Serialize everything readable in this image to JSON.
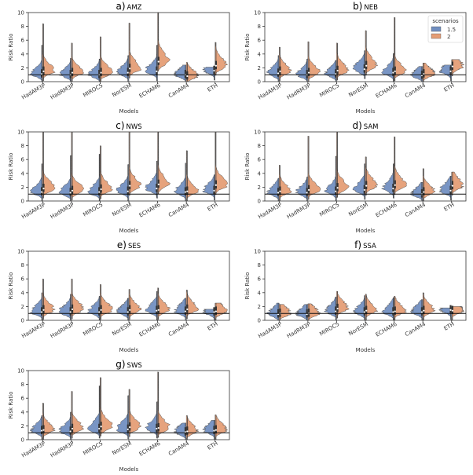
{
  "colors": {
    "s15": "#4c72b0",
    "s2": "#dd8452"
  },
  "chart_data": [
    {
      "type": "violin",
      "title_letter": "a)",
      "title_region": "AMZ",
      "xlabel": "Models",
      "ylabel": "Risk Ratio",
      "ylim": [
        0,
        10
      ],
      "yticks": [
        "0",
        "2",
        "4",
        "6",
        "8",
        "10"
      ],
      "categories": [
        "HadAM3P",
        "HadRM3P",
        "MIROC5",
        "NorESM",
        "ECHAM6",
        "CanAM4",
        "ETH"
      ],
      "reference_line": 1,
      "series": [
        {
          "name": "1.5",
          "median": [
            1.1,
            1.0,
            1.0,
            1.3,
            1.5,
            1.0,
            1.6
          ],
          "max": [
            5.3,
            3.4,
            3.3,
            3.8,
            5.3,
            2.4,
            2.1
          ]
        },
        {
          "name": "2",
          "median": [
            1.5,
            1.3,
            1.3,
            1.9,
            2.9,
            0.8,
            2.3
          ],
          "max": [
            8.4,
            5.6,
            6.5,
            8.5,
            10.0,
            2.8,
            5.7
          ]
        }
      ]
    },
    {
      "type": "violin",
      "title_letter": "b)",
      "title_region": "NEB",
      "xlabel": "Models",
      "ylabel": "Risk Ratio",
      "ylim": [
        0,
        10
      ],
      "yticks": [
        "0",
        "2",
        "4",
        "6",
        "8",
        "10"
      ],
      "categories": [
        "HadAM3P",
        "HadRM3P",
        "MIROC5",
        "NorESM",
        "ECHAM6",
        "CanAM4",
        "ETH"
      ],
      "reference_line": 1,
      "legend": {
        "title": "scenarios",
        "entries": [
          "1.5",
          "2"
        ],
        "placement": "top-right"
      },
      "series": [
        {
          "name": "1.5",
          "median": [
            1.2,
            1.0,
            1.1,
            1.8,
            1.3,
            0.9,
            1.5
          ],
          "max": [
            3.8,
            3.3,
            3.1,
            4.5,
            4.1,
            2.2,
            2.4
          ]
        },
        {
          "name": "2",
          "median": [
            1.5,
            1.3,
            1.6,
            2.3,
            1.5,
            1.1,
            2.2
          ],
          "max": [
            5.0,
            5.8,
            5.6,
            7.4,
            9.3,
            2.7,
            3.2
          ]
        }
      ]
    },
    {
      "type": "violin",
      "title_letter": "c)",
      "title_region": "NWS",
      "xlabel": "Models",
      "ylabel": "Risk Ratio",
      "ylim": [
        0,
        10
      ],
      "yticks": [
        "0",
        "2",
        "4",
        "6",
        "8",
        "10"
      ],
      "categories": [
        "HadAM3P",
        "HadRM3P",
        "MIROC5",
        "NorESM",
        "ECHAM6",
        "CanAM4",
        "ETH"
      ],
      "reference_line": 1,
      "series": [
        {
          "name": "1.5",
          "median": [
            1.3,
            1.2,
            1.3,
            1.4,
            1.8,
            1.3,
            1.5
          ],
          "max": [
            5.4,
            6.6,
            6.8,
            5.3,
            5.8,
            5.5,
            3.8
          ]
        },
        {
          "name": "2",
          "median": [
            1.8,
            1.5,
            1.7,
            2.2,
            2.4,
            1.4,
            2.3
          ],
          "max": [
            10.0,
            10.0,
            8.0,
            10.0,
            10.0,
            7.3,
            10.0
          ]
        }
      ]
    },
    {
      "type": "violin",
      "title_letter": "d)",
      "title_region": "SAM",
      "xlabel": "Models",
      "ylabel": "Risk Ratio",
      "ylim": [
        0,
        10
      ],
      "yticks": [
        "0",
        "2",
        "4",
        "6",
        "8",
        "10"
      ],
      "categories": [
        "HadAM3P",
        "HadRM3P",
        "MIROC5",
        "NorESM",
        "ECHAM6",
        "CanAM4",
        "ETH"
      ],
      "reference_line": 1,
      "series": [
        {
          "name": "1.5",
          "median": [
            1.2,
            1.2,
            1.4,
            1.6,
            1.8,
            1.0,
            1.5
          ],
          "max": [
            3.3,
            3.5,
            6.5,
            5.4,
            5.4,
            2.7,
            3.6
          ]
        },
        {
          "name": "2",
          "median": [
            1.4,
            1.6,
            1.9,
            2.2,
            2.3,
            1.3,
            2.2
          ],
          "max": [
            5.2,
            9.4,
            10.0,
            6.4,
            9.3,
            4.7,
            4.2
          ]
        }
      ]
    },
    {
      "type": "violin",
      "title_letter": "e)",
      "title_region": "SES",
      "xlabel": "Models",
      "ylabel": "Risk Ratio",
      "ylim": [
        0,
        10
      ],
      "yticks": [
        "0",
        "2",
        "4",
        "6",
        "8",
        "10"
      ],
      "categories": [
        "HadAM3P",
        "HadRM3P",
        "MIROC5",
        "NorESM",
        "ECHAM6",
        "CanAM4",
        "ETH"
      ],
      "reference_line": 1,
      "series": [
        {
          "name": "1.5",
          "median": [
            1.2,
            1.2,
            1.2,
            1.2,
            1.4,
            1.3,
            1.2
          ],
          "max": [
            4.0,
            3.8,
            3.5,
            3.2,
            4.2,
            3.2,
            1.6
          ]
        },
        {
          "name": "2",
          "median": [
            1.5,
            1.6,
            1.5,
            1.5,
            1.5,
            1.6,
            1.3
          ],
          "max": [
            6.0,
            6.0,
            5.2,
            4.5,
            4.7,
            4.4,
            2.5
          ]
        }
      ]
    },
    {
      "type": "violin",
      "title_letter": "f)",
      "title_region": "SSA",
      "xlabel": "Models",
      "ylabel": "Risk Ratio",
      "ylim": [
        0,
        10
      ],
      "yticks": [
        "0",
        "2",
        "4",
        "6",
        "8",
        "10"
      ],
      "categories": [
        "HadAM3P",
        "HadRM3P",
        "MIROC5",
        "NorESM",
        "ECHAM6",
        "CanAM4",
        "ETH"
      ],
      "reference_line": 1,
      "series": [
        {
          "name": "1.5",
          "median": [
            0.9,
            0.9,
            1.3,
            1.2,
            1.2,
            1.2,
            1.5
          ],
          "max": [
            2.5,
            2.3,
            3.4,
            3.6,
            3.3,
            3.0,
            1.8
          ]
        },
        {
          "name": "2",
          "median": [
            1.0,
            1.0,
            1.7,
            1.4,
            1.3,
            1.4,
            1.4
          ],
          "max": [
            2.3,
            2.4,
            4.2,
            3.8,
            3.5,
            4.0,
            2.0
          ]
        }
      ]
    },
    {
      "type": "violin",
      "title_letter": "g)",
      "title_region": "SWS",
      "xlabel": "Models",
      "ylabel": "Risk Ratio",
      "ylim": [
        0,
        10
      ],
      "yticks": [
        "0",
        "2",
        "4",
        "6",
        "8",
        "10"
      ],
      "categories": [
        "HadAM3P",
        "HadRM3P",
        "MIROC5",
        "NorESM",
        "ECHAM6",
        "CanAM4",
        "ETH"
      ],
      "reference_line": 1,
      "series": [
        {
          "name": "1.5",
          "median": [
            1.3,
            1.2,
            1.6,
            1.5,
            1.6,
            1.1,
            1.3
          ],
          "max": [
            3.5,
            4.0,
            7.8,
            6.4,
            5.5,
            2.4,
            2.8
          ]
        },
        {
          "name": "2",
          "median": [
            1.4,
            1.6,
            1.9,
            1.8,
            1.7,
            1.2,
            1.4
          ],
          "max": [
            5.3,
            7.0,
            9.0,
            7.3,
            9.8,
            3.5,
            3.6
          ]
        }
      ]
    }
  ]
}
